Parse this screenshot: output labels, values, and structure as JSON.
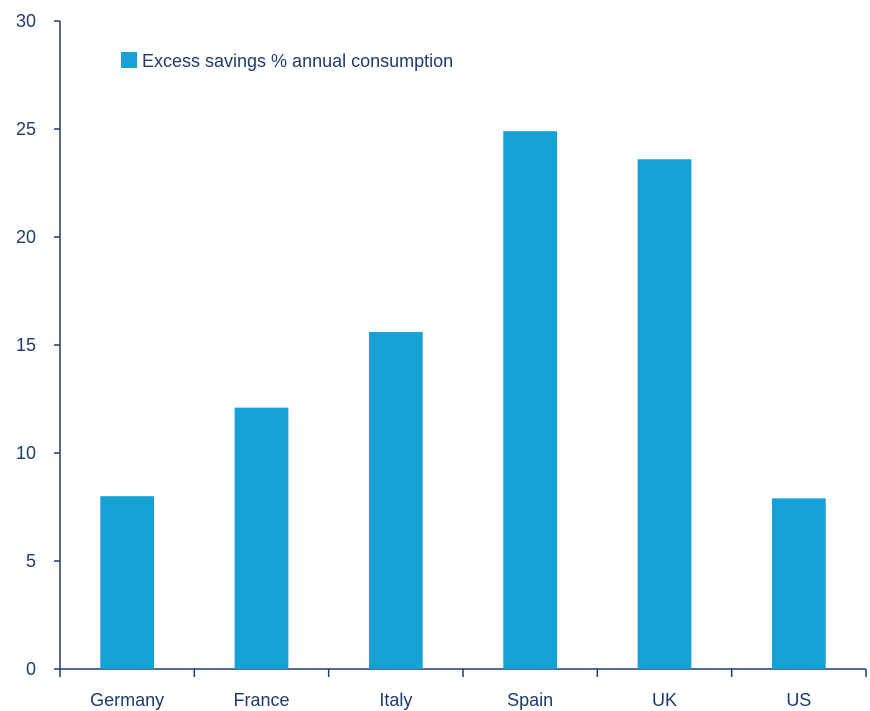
{
  "chart_data": {
    "type": "bar",
    "categories": [
      "Germany",
      "France",
      "Italy",
      "Spain",
      "UK",
      "US"
    ],
    "series": [
      {
        "name": "Excess savings % annual consumption",
        "values": [
          8.0,
          12.1,
          15.6,
          24.9,
          23.6,
          7.9
        ],
        "color": "#16a1d4"
      }
    ],
    "ylim": [
      0,
      30
    ],
    "yticks": [
      0,
      5,
      10,
      15,
      20,
      25,
      30
    ],
    "grid": false,
    "legend_position": "top-left",
    "axis_color": "#1f3a6e"
  }
}
